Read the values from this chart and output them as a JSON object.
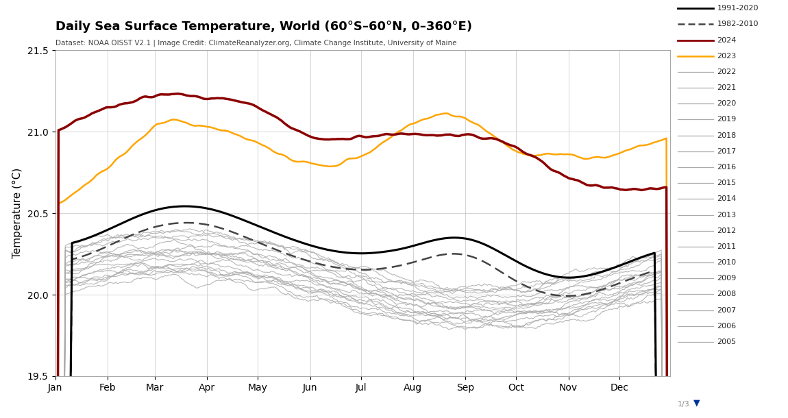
{
  "title": "Daily Sea Surface Temperature, World (60°S–60°N, 0–360°E)",
  "subtitle": "Dataset: NOAA OISST V2.1 | Image Credit: ClimateReanalyzer.org, Climate Change Institute, University of Maine",
  "ylabel": "Temperature (°C)",
  "ylim": [
    19.5,
    21.5
  ],
  "yticks": [
    19.5,
    20.0,
    20.5,
    21.0,
    21.5
  ],
  "month_labels": [
    "Jan",
    "Feb",
    "Mar",
    "Apr",
    "May",
    "Jun",
    "Jul",
    "Aug",
    "Sep",
    "Oct",
    "Nov",
    "Dec"
  ],
  "color_2024": "#8B0000",
  "color_2023": "#FFA500",
  "color_gray_years": "#AAAAAA",
  "color_baseline_solid": "#000000",
  "color_baseline_dashed": "#333333",
  "background_color": "#FFFFFF"
}
